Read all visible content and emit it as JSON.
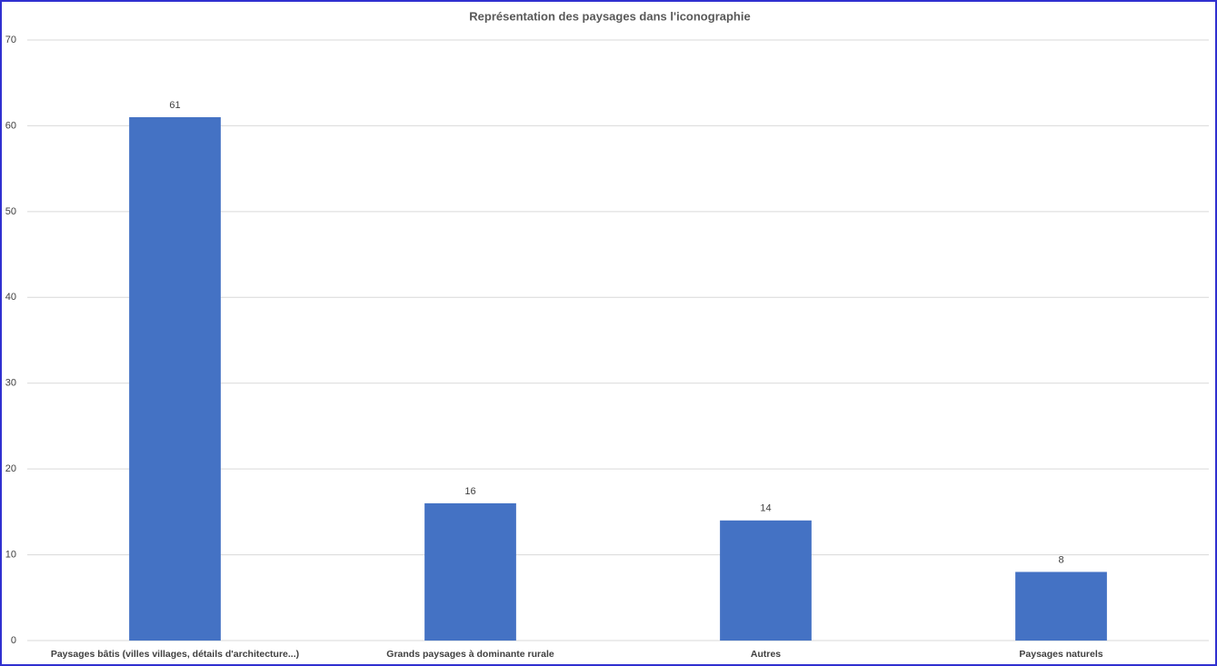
{
  "chart_data": {
    "type": "bar",
    "title": "Représentation des paysages dans l'iconographie",
    "categories": [
      "Paysages bâtis (villes villages, détails d'architecture...)",
      "Grands paysages à dominante rurale",
      "Autres",
      "Paysages naturels"
    ],
    "values": [
      61,
      16,
      14,
      8
    ],
    "color": "#4472c4",
    "ylim": [
      0,
      70
    ],
    "yticks": [
      0,
      10,
      20,
      30,
      40,
      50,
      60,
      70
    ],
    "grid": true,
    "data_labels": true
  }
}
